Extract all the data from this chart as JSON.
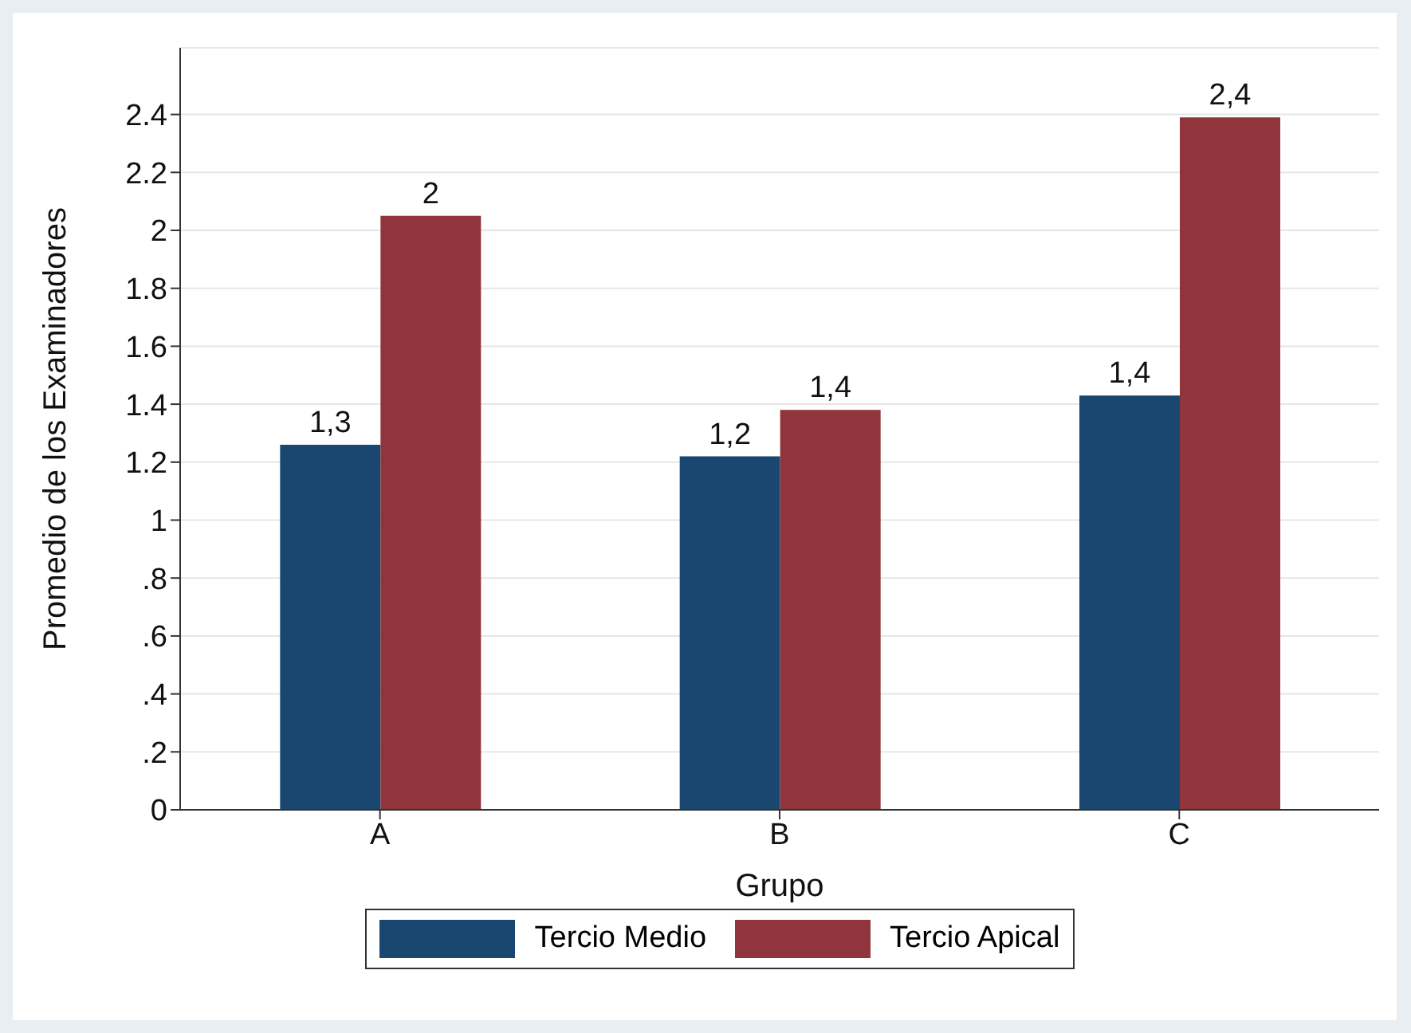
{
  "chart_data": {
    "type": "bar",
    "xlabel": "Grupo",
    "ylabel": "Promedio de los Examinadores",
    "categories": [
      "A",
      "B",
      "C"
    ],
    "series": [
      {
        "name": "Tercio Medio",
        "color": "#1a476f",
        "values": [
          1.26,
          1.22,
          1.43
        ],
        "value_labels": [
          "1,3",
          "1,2",
          "1,4"
        ]
      },
      {
        "name": "Tercio Apical",
        "color": "#90353b",
        "values": [
          2.05,
          1.38,
          2.39
        ],
        "value_labels": [
          "2",
          "1,4",
          "2,4"
        ]
      }
    ],
    "ylim": [
      0,
      2.63
    ],
    "yticks": [
      0,
      {
        "value": 0.2,
        "label": ".2"
      },
      {
        "value": 0.4,
        "label": ".4"
      },
      {
        "value": 0.6,
        "label": ".6"
      },
      {
        "value": 0.8,
        "label": ".8"
      },
      1,
      {
        "value": 1.2,
        "label": "1.2"
      },
      {
        "value": 1.4,
        "label": "1.4"
      },
      {
        "value": 1.6,
        "label": "1.6"
      },
      {
        "value": 1.8,
        "label": "1.8"
      },
      2,
      {
        "value": 2.2,
        "label": "2.2"
      },
      {
        "value": 2.4,
        "label": "2.4"
      }
    ],
    "grid": "y",
    "legend": "bottom"
  }
}
